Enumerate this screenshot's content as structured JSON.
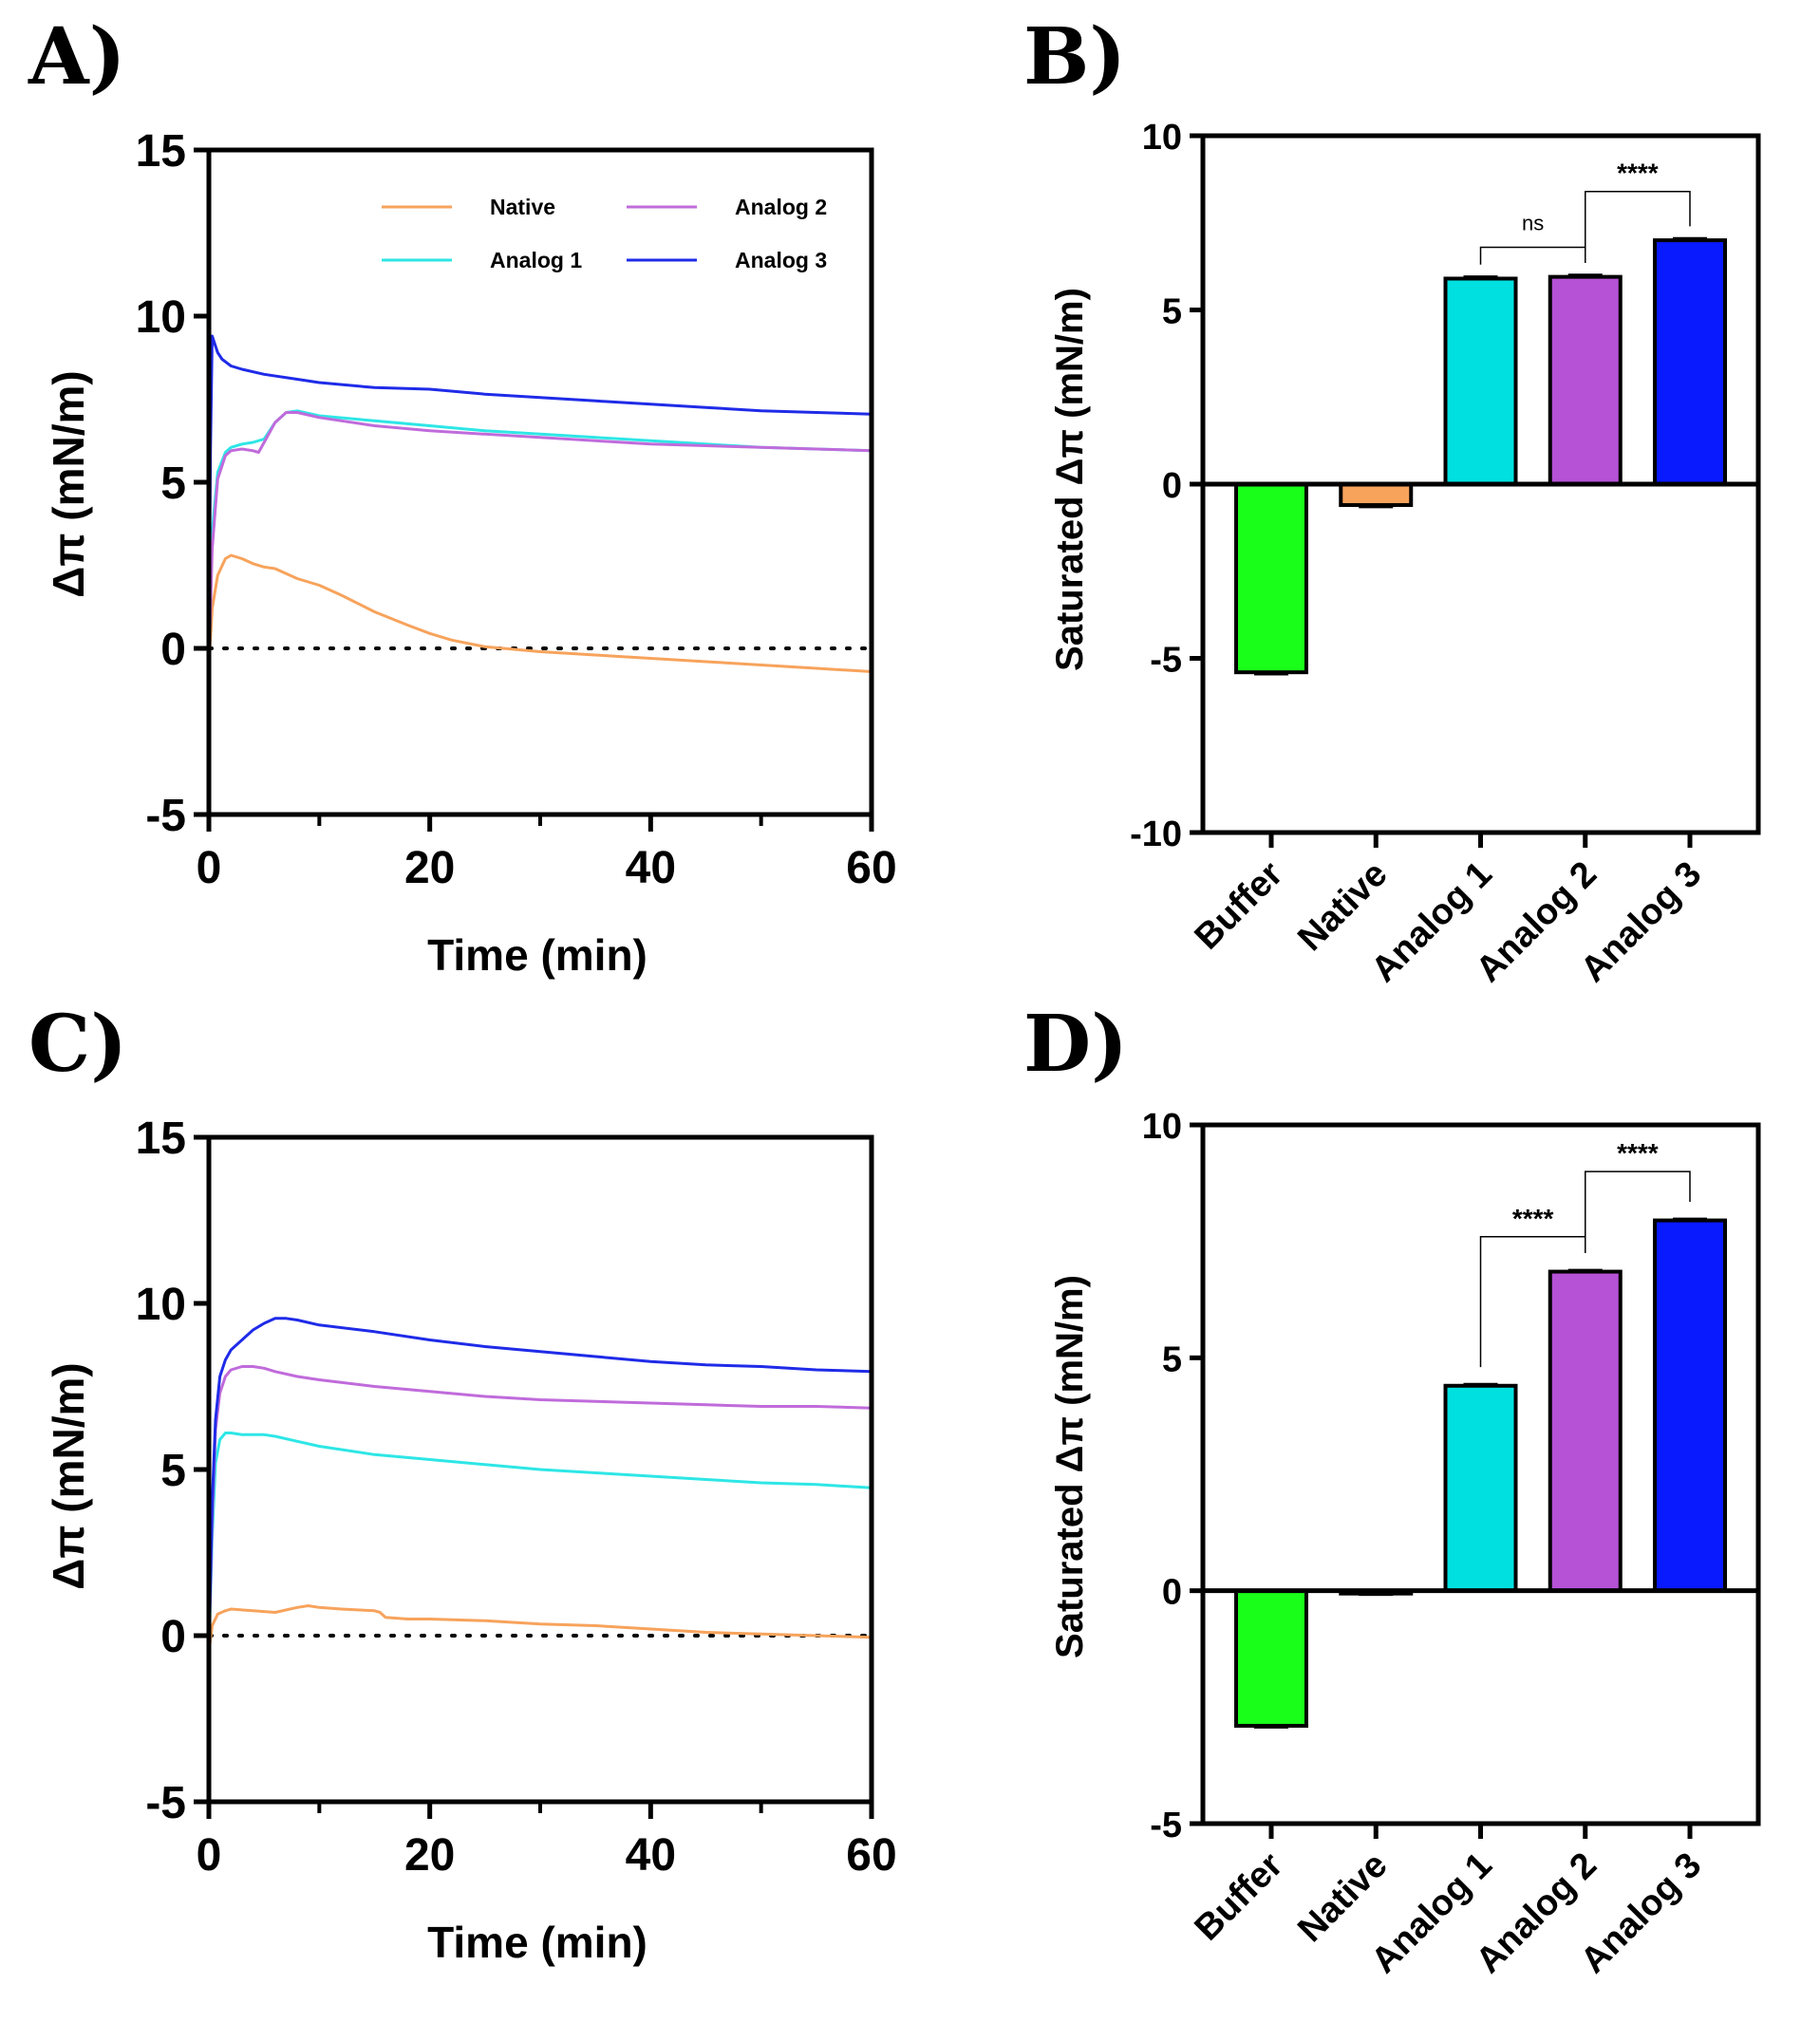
{
  "chart_data": [
    {
      "id": "A",
      "panel_label": "A)",
      "type": "line",
      "xlabel": "Time (min)",
      "ylabel": "Δπ (mN/m)",
      "xlim": [
        0,
        60
      ],
      "ylim": [
        -5,
        15
      ],
      "xticks": [
        "0",
        "20",
        "40",
        "60"
      ],
      "yticks": [
        "15",
        "10",
        "5",
        "0",
        "-5"
      ],
      "xtick_values": [
        0,
        20,
        40,
        60
      ],
      "ytick_values": [
        15,
        10,
        5,
        0,
        -5
      ],
      "minor_x": [
        10,
        30,
        50
      ],
      "baseline": 0,
      "legend": [
        "Native",
        "Analog 1",
        "Analog 2",
        "Analog 3"
      ],
      "series": [
        {
          "name": "Native",
          "color": "#f7a35c",
          "x": [
            0,
            0.3,
            0.8,
            1.5,
            2,
            3,
            4,
            5,
            6,
            8,
            10,
            12,
            15,
            18,
            20,
            22,
            25,
            30,
            35,
            40,
            45,
            50,
            55,
            60
          ],
          "y": [
            -0.5,
            1.2,
            2.2,
            2.7,
            2.8,
            2.7,
            2.55,
            2.45,
            2.4,
            2.1,
            1.9,
            1.6,
            1.1,
            0.7,
            0.45,
            0.25,
            0.05,
            -0.1,
            -0.2,
            -0.3,
            -0.4,
            -0.5,
            -0.6,
            -0.7
          ]
        },
        {
          "name": "Analog 1",
          "color": "#2ee6e6",
          "x": [
            0,
            0.3,
            0.8,
            1.5,
            2,
            3,
            4,
            5,
            6,
            7,
            8,
            10,
            15,
            20,
            25,
            30,
            35,
            40,
            45,
            50,
            55,
            60
          ],
          "y": [
            -0.5,
            3.5,
            5.3,
            5.9,
            6.05,
            6.15,
            6.2,
            6.3,
            6.8,
            7.1,
            7.15,
            7.0,
            6.85,
            6.7,
            6.55,
            6.45,
            6.35,
            6.25,
            6.15,
            6.05,
            6.0,
            5.95
          ]
        },
        {
          "name": "Analog 2",
          "color": "#c06bdb",
          "x": [
            0,
            0.3,
            0.8,
            1.5,
            2,
            3,
            4,
            4.5,
            5,
            6,
            7,
            8,
            10,
            15,
            20,
            25,
            30,
            35,
            40,
            45,
            50,
            55,
            60
          ],
          "y": [
            -0.5,
            3.0,
            5.1,
            5.8,
            5.95,
            6.0,
            5.95,
            5.9,
            6.2,
            6.8,
            7.1,
            7.1,
            6.95,
            6.7,
            6.55,
            6.45,
            6.35,
            6.25,
            6.15,
            6.1,
            6.05,
            6.0,
            5.95
          ]
        },
        {
          "name": "Analog 3",
          "color": "#1f2be8",
          "x": [
            0,
            0.15,
            0.3,
            0.5,
            0.8,
            1.2,
            2,
            3,
            5,
            8,
            10,
            15,
            20,
            25,
            30,
            35,
            40,
            45,
            50,
            55,
            60
          ],
          "y": [
            -0.5,
            6.0,
            9.4,
            9.2,
            8.9,
            8.7,
            8.5,
            8.4,
            8.25,
            8.1,
            8.0,
            7.85,
            7.8,
            7.65,
            7.55,
            7.45,
            7.35,
            7.25,
            7.15,
            7.1,
            7.05
          ]
        }
      ]
    },
    {
      "id": "B",
      "panel_label": "B)",
      "type": "bar",
      "ylabel": "Saturated Δπ (mN/m)",
      "ylim": [
        -10,
        10
      ],
      "yticks": [
        "10",
        "5",
        "0",
        "-5",
        "-10"
      ],
      "ytick_values": [
        10,
        5,
        0,
        -5,
        -10
      ],
      "categories": [
        "Buffer",
        "Native",
        "Analog 1",
        "Analog 2",
        "Analog 3"
      ],
      "values": [
        -5.4,
        -0.6,
        5.9,
        5.95,
        7.0
      ],
      "errors": [
        0.05,
        0.05,
        0.05,
        0.05,
        0.05
      ],
      "colors": [
        "#1aff1a",
        "#f7a35c",
        "#00e0e0",
        "#b552d6",
        "#0a1aff"
      ],
      "comparisons": [
        {
          "from": 2,
          "to": 3,
          "label": "ns",
          "level": 6.8
        },
        {
          "from": 3,
          "to": 4,
          "label": "****",
          "level": 8.4
        }
      ]
    },
    {
      "id": "C",
      "panel_label": "C)",
      "type": "line",
      "xlabel": "Time (min)",
      "ylabel": "Δπ (mN/m)",
      "xlim": [
        0,
        60
      ],
      "ylim": [
        -5,
        15
      ],
      "xticks": [
        "0",
        "20",
        "40",
        "60"
      ],
      "yticks": [
        "15",
        "10",
        "5",
        "0",
        "-5"
      ],
      "xtick_values": [
        0,
        20,
        40,
        60
      ],
      "ytick_values": [
        15,
        10,
        5,
        0,
        -5
      ],
      "minor_x": [
        10,
        30,
        50
      ],
      "baseline": 0,
      "series": [
        {
          "name": "Native",
          "color": "#f7a35c",
          "x": [
            0,
            0.3,
            0.8,
            1.5,
            2,
            4,
            6,
            8,
            9,
            10,
            12,
            15,
            15.5,
            16,
            18,
            20,
            25,
            30,
            35,
            40,
            45,
            50,
            55,
            60
          ],
          "y": [
            -0.5,
            0.3,
            0.65,
            0.75,
            0.8,
            0.75,
            0.7,
            0.85,
            0.9,
            0.85,
            0.8,
            0.75,
            0.7,
            0.55,
            0.5,
            0.5,
            0.45,
            0.35,
            0.3,
            0.2,
            0.1,
            0.05,
            0.0,
            -0.05
          ]
        },
        {
          "name": "Analog 1",
          "color": "#2ee6e6",
          "x": [
            0,
            0.3,
            0.6,
            1,
            1.5,
            2,
            3,
            4,
            5,
            6,
            8,
            10,
            15,
            20,
            25,
            30,
            35,
            40,
            45,
            50,
            55,
            60
          ],
          "y": [
            -0.5,
            3.0,
            5.2,
            5.9,
            6.1,
            6.1,
            6.05,
            6.05,
            6.05,
            6.0,
            5.85,
            5.7,
            5.45,
            5.3,
            5.15,
            5.0,
            4.9,
            4.8,
            4.7,
            4.6,
            4.55,
            4.45
          ]
        },
        {
          "name": "Analog 2",
          "color": "#c06bdb",
          "x": [
            0,
            0.3,
            0.6,
            1,
            1.5,
            2,
            3,
            4,
            5,
            6,
            8,
            10,
            15,
            20,
            25,
            30,
            35,
            40,
            45,
            50,
            55,
            60
          ],
          "y": [
            -0.5,
            3.5,
            6.2,
            7.3,
            7.8,
            8.0,
            8.1,
            8.1,
            8.05,
            7.95,
            7.8,
            7.7,
            7.5,
            7.35,
            7.2,
            7.1,
            7.05,
            7.0,
            6.95,
            6.9,
            6.9,
            6.85
          ]
        },
        {
          "name": "Analog 3",
          "color": "#1f2be8",
          "x": [
            0,
            0.3,
            0.6,
            1,
            1.5,
            2,
            3,
            4,
            5,
            6,
            7,
            8,
            10,
            15,
            20,
            25,
            30,
            35,
            40,
            45,
            50,
            55,
            60
          ],
          "y": [
            -0.5,
            4.0,
            6.5,
            7.8,
            8.3,
            8.6,
            8.9,
            9.2,
            9.4,
            9.55,
            9.55,
            9.5,
            9.35,
            9.15,
            8.9,
            8.7,
            8.55,
            8.4,
            8.25,
            8.15,
            8.1,
            8.0,
            7.95
          ]
        }
      ]
    },
    {
      "id": "D",
      "panel_label": "D)",
      "type": "bar",
      "ylabel": "Saturated Δπ (mN/m)",
      "ylim": [
        -5,
        10
      ],
      "yticks": [
        "10",
        "5",
        "0",
        "-5"
      ],
      "ytick_values": [
        10,
        5,
        0,
        -5
      ],
      "categories": [
        "Buffer",
        "Native",
        "Analog 1",
        "Analog 2",
        "Analog 3"
      ],
      "values": [
        -2.9,
        -0.05,
        4.4,
        6.85,
        7.95
      ],
      "errors": [
        0.03,
        0.03,
        0.03,
        0.03,
        0.03
      ],
      "colors": [
        "#1aff1a",
        "#f7a35c",
        "#00e0e0",
        "#b552d6",
        "#0a1aff"
      ],
      "comparisons": [
        {
          "from": 2,
          "to": 3,
          "label": "****",
          "level": 7.6
        },
        {
          "from": 3,
          "to": 4,
          "label": "****",
          "level": 9.0
        }
      ]
    }
  ]
}
